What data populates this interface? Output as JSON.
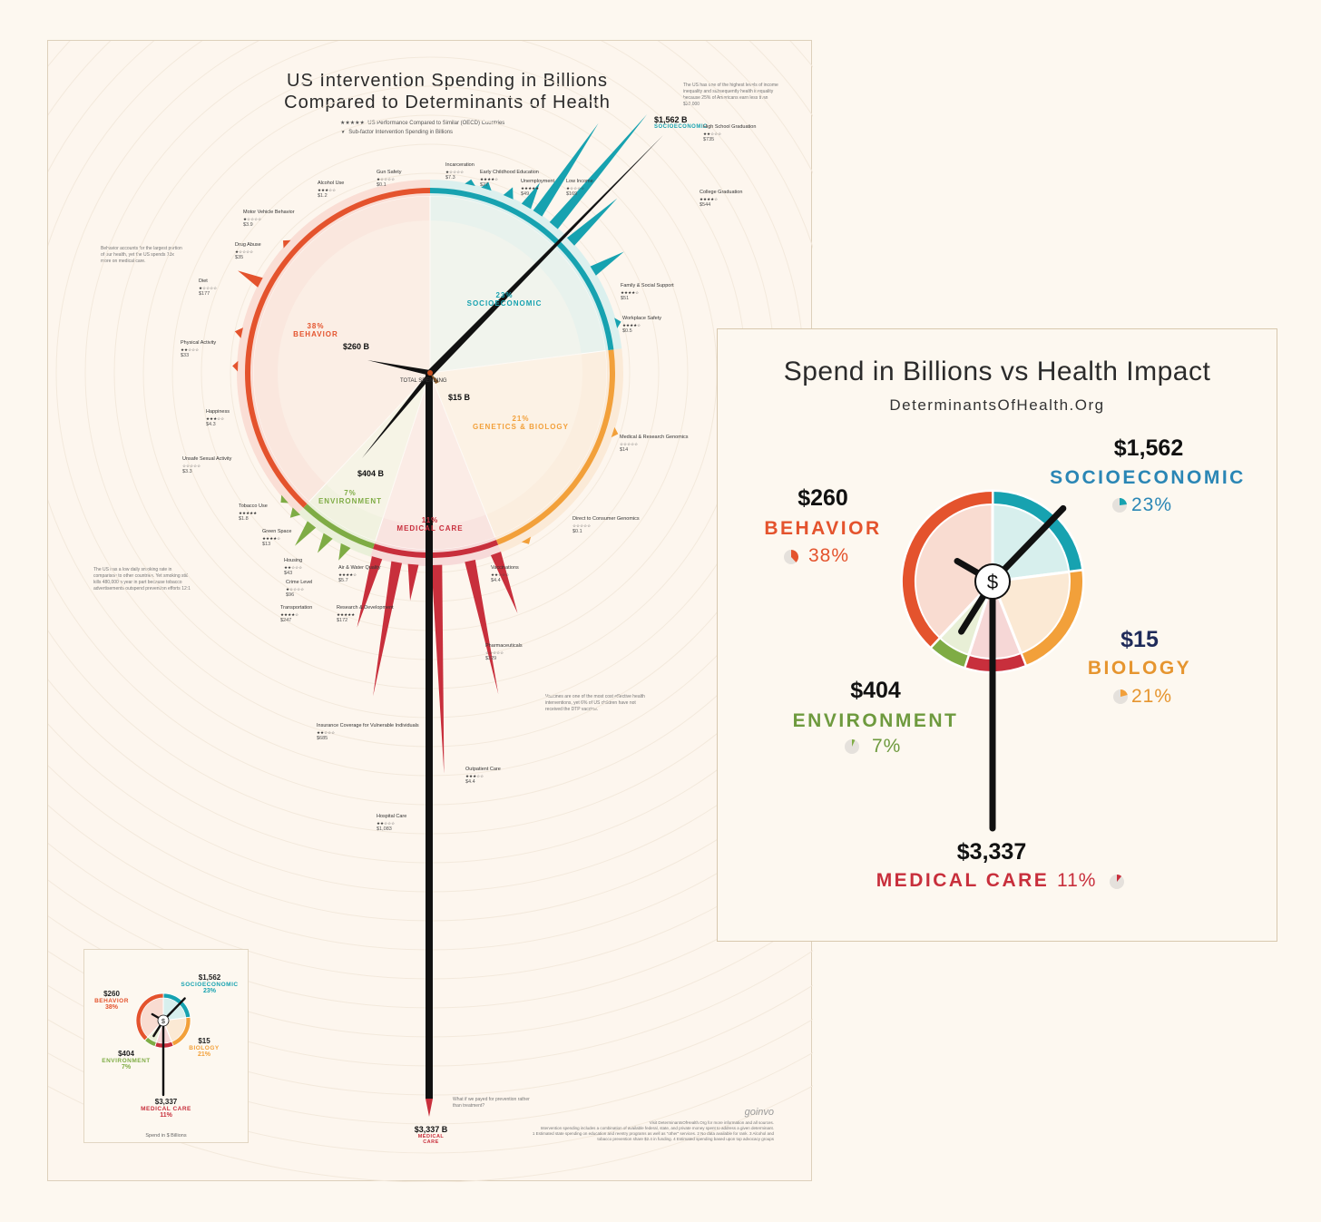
{
  "poster": {
    "title_line1": "US Intervention Spending in Billions",
    "title_line2": "Compared to Determinants of Health",
    "legend_stars": "US Performance Compared to Similar (OECD) Countries",
    "legend_spend": "Sub-factor Intervention Spending in Billions",
    "total_spending": "TOTAL SPENDING",
    "note_income": "The US has one of the highest levels of income inequality and subsequently health inequality because 25% of Americans earn less than $20,000",
    "note_behavior": "Behavior accounts for the largest portion of our health, yet the US spends 13x more on medical care.",
    "note_smoking": "The US has a low daily smoking rate in comparison to other countries. Yet smoking still kills 480,000 a year in part because tobacco advertisements outspend prevention efforts 12:1",
    "note_vaccines": "Vaccines are one of the most cost effective health interventions, yet 6% of US children have not received the DTP vaccine.",
    "note_prevention": "What if we payed for prevention rather than treatment?",
    "footer_1": "Visit DeterminantsOfHealth.Org for more information and all sources.",
    "footer_2": "Intervention spending includes a combination of available federal, state, and private money spent to address a given determinant.",
    "footer_3": "1 Estimated state spending on education and reentry programs as well as \"other\" services.  2 No data available for rank.  3 Alcohol and",
    "footer_4": "tobacco prevention share $2.4 in funding.  4 Estimated spending based upon top advocacy groups",
    "brand": "goinvo"
  },
  "categories": {
    "socioeconomic": {
      "name": "SOCIOECONOMIC",
      "pct": "23%",
      "spend": "$1,562 B"
    },
    "behavior": {
      "name": "BEHAVIOR",
      "pct": "38%",
      "spend": "$260 B"
    },
    "genetics": {
      "name": "GENETICS & BIOLOGY",
      "pct": "21%",
      "spend": "$15 B"
    },
    "environment": {
      "name": "ENVIRONMENT",
      "pct": "7%",
      "spend": "$404 B"
    },
    "medical": {
      "name": "MEDICAL CARE",
      "pct": "11%",
      "spend": "$3,337 B"
    }
  },
  "subfactors": [
    {
      "label": "High School Graduation",
      "value": "$735",
      "stars": 2
    },
    {
      "label": "College Graduation",
      "value": "$544",
      "stars": 4
    },
    {
      "label": "Low Income",
      "value": "$169",
      "stars": 1
    },
    {
      "label": "Unemployment",
      "value": "$49",
      "stars": 5
    },
    {
      "label": "Early Childhood Education",
      "value": "$27",
      "stars": 4
    },
    {
      "label": "Incarceration",
      "value": "$7.3",
      "stars": 1
    },
    {
      "label": "Family & Social Support",
      "value": "$51",
      "stars": 4
    },
    {
      "label": "Workplace Safety",
      "value": "$0.5",
      "stars": 4
    },
    {
      "label": "Gun Safety",
      "value": "$0.1",
      "stars": 1
    },
    {
      "label": "Alcohol Use",
      "value": "$1.2",
      "stars": 3
    },
    {
      "label": "Motor Vehicle Behavior",
      "value": "$3.9",
      "stars": 1
    },
    {
      "label": "Drug Abuse",
      "value": "$35",
      "stars": 1
    },
    {
      "label": "Diet",
      "value": "$177",
      "stars": 1
    },
    {
      "label": "Physical Activity",
      "value": "$33",
      "stars": 2
    },
    {
      "label": "Happiness",
      "value": "$4.3",
      "stars": 3
    },
    {
      "label": "Unsafe Sexual Activity",
      "value": "$3.3",
      "stars": 0
    },
    {
      "label": "Tobacco Use",
      "value": "$1.8",
      "stars": 5
    },
    {
      "label": "Green Space",
      "value": "$13",
      "stars": 4
    },
    {
      "label": "Housing",
      "value": "$43",
      "stars": 2
    },
    {
      "label": "Crime Level",
      "value": "$96",
      "stars": 1
    },
    {
      "label": "Air & Water Quality",
      "value": "$5.7",
      "stars": 4
    },
    {
      "label": "Transportation",
      "value": "$247",
      "stars": 4
    },
    {
      "label": "Research & Development",
      "value": "$172",
      "stars": 5
    },
    {
      "label": "Medical & Research Genomics",
      "value": "$14",
      "stars": 0
    },
    {
      "label": "Direct to Consumer Genomics",
      "value": "$0.1",
      "stars": 0
    },
    {
      "label": "Vaccinations",
      "value": "$4.4",
      "stars": 2
    },
    {
      "label": "Pharmaceuticals",
      "value": "$329",
      "stars": 0
    },
    {
      "label": "Insurance Coverage for Vulnerable Individuals",
      "value": "$685",
      "stars": 2
    },
    {
      "label": "Outpatient Care",
      "value": "$4.4",
      "stars": 3
    },
    {
      "label": "Hospital Care",
      "value": "$1,083",
      "stars": 2
    }
  ],
  "inset": {
    "title": "Spend in Billions vs Health Impact",
    "subtitle": "DeterminantsOfHealth.Org",
    "center_symbol": "$",
    "behavior": {
      "amount": "$260",
      "name": "BEHAVIOR",
      "pct": "38%"
    },
    "socioeconomic": {
      "amount": "$1,562",
      "name": "SOCIOECONOMIC",
      "pct": "23%"
    },
    "biology": {
      "amount": "$15",
      "name": "BIOLOGY",
      "pct": "21%"
    },
    "environment": {
      "amount": "$404",
      "name": "ENVIRONMENT",
      "pct": "7%"
    },
    "medical": {
      "amount": "$3,337",
      "name": "MEDICAL CARE",
      "pct": "11%"
    }
  },
  "mini": {
    "footer": "Spend in $ Billions"
  },
  "colors": {
    "behavior": "#e4532d",
    "socioeconomic": "#17a2b0",
    "biology": "#f2a03a",
    "environment": "#7fac45",
    "medical": "#c82f3c"
  },
  "chart_data": [
    {
      "type": "pie",
      "title": "US Intervention Spending in Billions Compared to Determinants of Health",
      "categories": [
        "Socioeconomic",
        "Genetics & Biology",
        "Medical Care",
        "Environment",
        "Behavior"
      ],
      "health_impact_pct": [
        23,
        21,
        11,
        7,
        38
      ],
      "spending_billions": [
        1562,
        15,
        3337,
        404,
        260
      ]
    },
    {
      "type": "pie",
      "title": "Spend in Billions vs Health Impact",
      "categories": [
        "Socioeconomic",
        "Biology",
        "Medical Care",
        "Environment",
        "Behavior"
      ],
      "health_impact_pct": [
        23,
        21,
        11,
        7,
        38
      ],
      "spending_billions": [
        1562,
        15,
        3337,
        404,
        260
      ]
    }
  ]
}
